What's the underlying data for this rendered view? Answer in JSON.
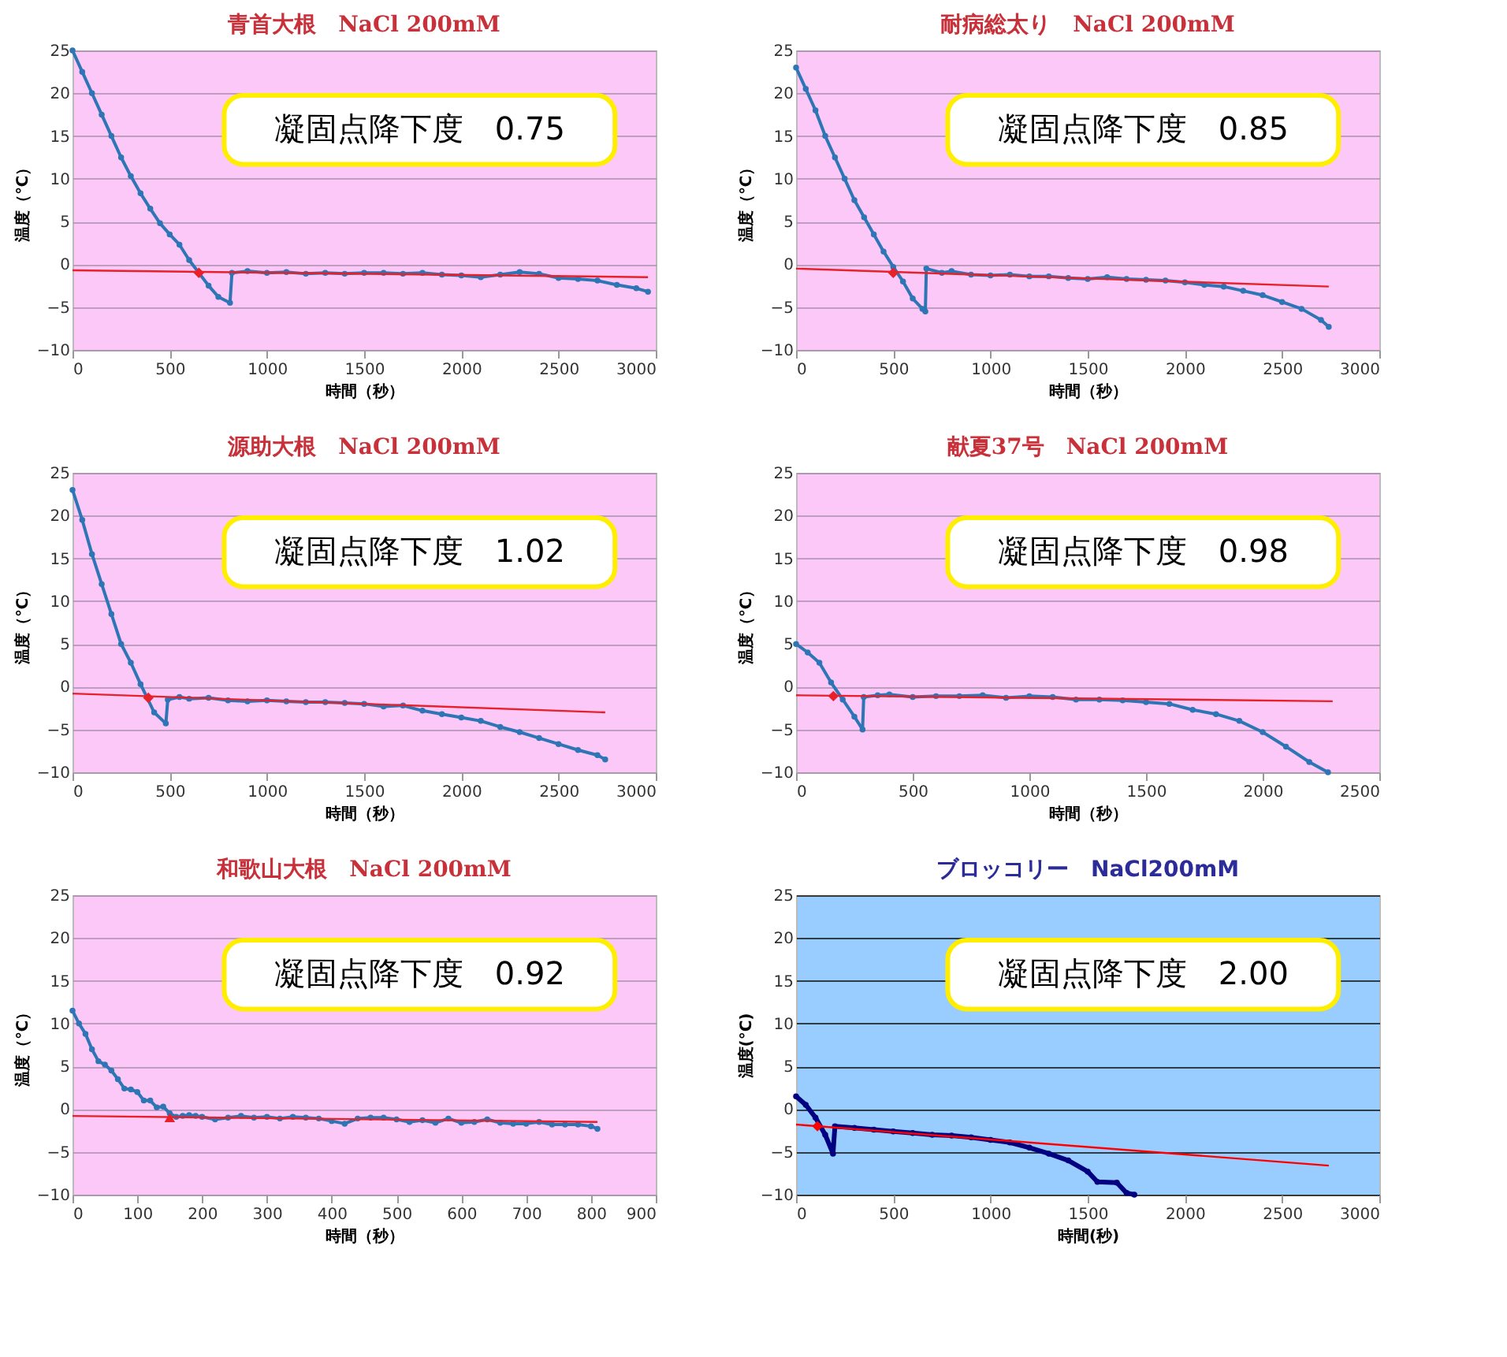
{
  "chart_data": [
    {
      "type": "line",
      "title": "青首大根　NaCl 200mM",
      "xlabel": "時間（秒）",
      "ylabel": "温度（℃）",
      "xlim": [
        0,
        3000
      ],
      "ylim": [
        -10,
        25
      ],
      "xticks": [
        0,
        500,
        1000,
        1500,
        2000,
        2500,
        3000
      ],
      "yticks": [
        -10,
        -5,
        0,
        5,
        10,
        15,
        20,
        25
      ],
      "grid": "y",
      "annotations": [
        "凝固点降下度　0.75"
      ],
      "series": [
        {
          "type": "line",
          "color": "#2e75b6",
          "marker": "circle",
          "x": [
            0,
            50,
            100,
            150,
            200,
            250,
            300,
            350,
            400,
            450,
            500,
            550,
            600,
            650,
            700,
            750,
            810,
            820,
            900,
            1000,
            1100,
            1200,
            1300,
            1400,
            1500,
            1600,
            1700,
            1800,
            1900,
            2000,
            2100,
            2200,
            2300,
            2400,
            2500,
            2600,
            2700,
            2800,
            2900,
            2960
          ],
          "values": [
            25,
            22.5,
            20,
            17.5,
            15,
            12.5,
            10.3,
            8.3,
            6.5,
            4.8,
            3.5,
            2.3,
            0.5,
            -1,
            -2.5,
            -3.8,
            -4.5,
            -1,
            -0.8,
            -1,
            -0.9,
            -1.1,
            -1,
            -1.1,
            -1,
            -1,
            -1.1,
            -1,
            -1.2,
            -1.3,
            -1.5,
            -1.2,
            -0.9,
            -1.1,
            -1.6,
            -1.7,
            -1.9,
            -2.4,
            -2.8,
            -3.2
          ]
        },
        {
          "type": "line",
          "color": "#e8202a",
          "marker": "none",
          "x": [
            0,
            2960
          ],
          "values": [
            -0.7,
            -1.5
          ]
        },
        {
          "type": "scatter",
          "color": "#e8202a",
          "marker": "diamond",
          "x": [
            650
          ],
          "values": [
            -1
          ]
        }
      ]
    },
    {
      "type": "line",
      "title": "耐病総太り　NaCl 200mM",
      "xlabel": "時間（秒）",
      "ylabel": "温度（℃）",
      "xlim": [
        0,
        3000
      ],
      "ylim": [
        -10,
        25
      ],
      "xticks": [
        0,
        500,
        1000,
        1500,
        2000,
        2500,
        3000
      ],
      "yticks": [
        -10,
        -5,
        0,
        5,
        10,
        15,
        20,
        25
      ],
      "grid": "y",
      "annotations": [
        "凝固点降下度　0.85"
      ],
      "series": [
        {
          "type": "line",
          "color": "#2e75b6",
          "marker": "circle",
          "x": [
            0,
            50,
            100,
            150,
            200,
            250,
            300,
            350,
            400,
            450,
            500,
            550,
            600,
            650,
            665,
            670,
            750,
            800,
            900,
            1000,
            1100,
            1200,
            1300,
            1400,
            1500,
            1600,
            1700,
            1800,
            1900,
            2000,
            2100,
            2200,
            2300,
            2400,
            2500,
            2600,
            2700,
            2740
          ],
          "values": [
            23,
            20.5,
            18,
            15,
            12.5,
            10,
            7.5,
            5.5,
            3.5,
            1.5,
            -0.3,
            -2,
            -4,
            -5.2,
            -5.5,
            -0.5,
            -1,
            -0.8,
            -1.2,
            -1.3,
            -1.2,
            -1.4,
            -1.4,
            -1.6,
            -1.7,
            -1.5,
            -1.7,
            -1.8,
            -1.9,
            -2.1,
            -2.4,
            -2.6,
            -3.1,
            -3.6,
            -4.4,
            -5.2,
            -6.5,
            -7.3
          ]
        },
        {
          "type": "line",
          "color": "#e8202a",
          "marker": "none",
          "x": [
            0,
            2740
          ],
          "values": [
            -0.5,
            -2.6
          ]
        },
        {
          "type": "scatter",
          "color": "#e8202a",
          "marker": "diamond",
          "x": [
            500
          ],
          "values": [
            -1
          ]
        }
      ]
    },
    {
      "type": "line",
      "title": "源助大根　NaCl 200mM",
      "xlabel": "時間（秒）",
      "ylabel": "温度（℃）",
      "xlim": [
        0,
        3000
      ],
      "ylim": [
        -10,
        25
      ],
      "xticks": [
        0,
        500,
        1000,
        1500,
        2000,
        2500,
        3000
      ],
      "yticks": [
        -10,
        -5,
        0,
        5,
        10,
        15,
        20,
        25
      ],
      "grid": "y",
      "annotations": [
        "凝固点降下度　1.02"
      ],
      "series": [
        {
          "type": "line",
          "color": "#2e75b6",
          "marker": "circle",
          "x": [
            0,
            50,
            100,
            150,
            200,
            250,
            300,
            350,
            420,
            480,
            490,
            550,
            600,
            700,
            800,
            900,
            1000,
            1100,
            1200,
            1300,
            1400,
            1500,
            1600,
            1700,
            1800,
            1900,
            2000,
            2100,
            2200,
            2300,
            2400,
            2500,
            2600,
            2700,
            2740
          ],
          "values": [
            23,
            19.5,
            15.5,
            12,
            8.5,
            5,
            2.8,
            0.3,
            -3,
            -4.3,
            -1.5,
            -1.2,
            -1.4,
            -1.3,
            -1.6,
            -1.7,
            -1.6,
            -1.7,
            -1.8,
            -1.8,
            -1.9,
            -2,
            -2.3,
            -2.2,
            -2.8,
            -3.2,
            -3.6,
            -4,
            -4.7,
            -5.3,
            -6,
            -6.7,
            -7.4,
            -8,
            -8.5
          ]
        },
        {
          "type": "line",
          "color": "#e8202a",
          "marker": "none",
          "x": [
            0,
            2740
          ],
          "values": [
            -0.8,
            -3
          ]
        },
        {
          "type": "scatter",
          "color": "#e8202a",
          "marker": "diamond",
          "x": [
            390
          ],
          "values": [
            -1.3
          ]
        }
      ]
    },
    {
      "type": "line",
      "title": "献夏37号　NaCl 200mM",
      "xlabel": "時間（秒）",
      "ylabel": "温度（℃）",
      "xlim": [
        0,
        2500
      ],
      "ylim": [
        -10,
        25
      ],
      "xticks": [
        0,
        500,
        1000,
        1500,
        2000,
        2500
      ],
      "yticks": [
        -10,
        -5,
        0,
        5,
        10,
        15,
        20,
        25
      ],
      "grid": "y",
      "annotations": [
        "凝固点降下度　0.98"
      ],
      "series": [
        {
          "type": "line",
          "color": "#2e75b6",
          "marker": "circle",
          "x": [
            0,
            50,
            100,
            150,
            200,
            250,
            285,
            290,
            350,
            400,
            500,
            600,
            700,
            800,
            900,
            1000,
            1100,
            1200,
            1300,
            1400,
            1500,
            1600,
            1700,
            1800,
            1900,
            2000,
            2100,
            2200,
            2280
          ],
          "values": [
            5,
            4,
            2.8,
            0.5,
            -1.5,
            -3.5,
            -5,
            -1.2,
            -1,
            -0.9,
            -1.2,
            -1.1,
            -1.1,
            -1,
            -1.3,
            -1.1,
            -1.2,
            -1.5,
            -1.5,
            -1.6,
            -1.8,
            -2,
            -2.7,
            -3.2,
            -4,
            -5.3,
            -7,
            -8.8,
            -10
          ]
        },
        {
          "type": "line",
          "color": "#e8202a",
          "marker": "none",
          "x": [
            0,
            2300
          ],
          "values": [
            -1,
            -1.7
          ]
        },
        {
          "type": "scatter",
          "color": "#e8202a",
          "marker": "diamond",
          "x": [
            160
          ],
          "values": [
            -1.1
          ]
        }
      ]
    },
    {
      "type": "line",
      "title": "和歌山大根　NaCl 200mM",
      "xlabel": "時間（秒）",
      "ylabel": "温度（℃）",
      "xlim": [
        0,
        900
      ],
      "ylim": [
        -10,
        25
      ],
      "xticks": [
        0,
        100,
        200,
        300,
        400,
        500,
        600,
        700,
        800,
        900
      ],
      "yticks": [
        -10,
        -5,
        0,
        5,
        10,
        15,
        20,
        25
      ],
      "grid": "y",
      "annotations": [
        "凝固点降下度　0.92"
      ],
      "series": [
        {
          "type": "line",
          "color": "#2e75b6",
          "marker": "circle",
          "x": [
            0,
            10,
            20,
            30,
            40,
            50,
            60,
            70,
            80,
            90,
            100,
            110,
            120,
            130,
            140,
            150,
            160,
            170,
            180,
            190,
            200,
            220,
            240,
            260,
            280,
            300,
            320,
            340,
            360,
            380,
            400,
            420,
            440,
            460,
            480,
            500,
            520,
            540,
            560,
            580,
            600,
            620,
            640,
            660,
            680,
            700,
            720,
            740,
            760,
            780,
            800,
            810
          ],
          "values": [
            11.5,
            10,
            8.8,
            7,
            5.6,
            5.2,
            4.5,
            3.5,
            2.4,
            2.3,
            2,
            1,
            1,
            0.2,
            0.3,
            -0.5,
            -0.9,
            -0.8,
            -0.7,
            -0.8,
            -0.9,
            -1.2,
            -1,
            -0.8,
            -1,
            -0.9,
            -1.1,
            -0.9,
            -1,
            -1.1,
            -1.4,
            -1.7,
            -1.1,
            -1,
            -1,
            -1.2,
            -1.5,
            -1.3,
            -1.6,
            -1.1,
            -1.6,
            -1.5,
            -1.2,
            -1.6,
            -1.7,
            -1.7,
            -1.5,
            -1.8,
            -1.8,
            -1.8,
            -2,
            -2.3
          ]
        },
        {
          "type": "line",
          "color": "#e8202a",
          "marker": "none",
          "x": [
            0,
            810
          ],
          "values": [
            -0.8,
            -1.5
          ]
        },
        {
          "type": "scatter",
          "color": "#e8202a",
          "marker": "triangle",
          "x": [
            150
          ],
          "values": [
            -1
          ]
        }
      ]
    },
    {
      "type": "line",
      "title": "ブロッコリー　NaCl200mM",
      "xlabel": "時間(秒)",
      "ylabel": "温度(°C)",
      "xlim": [
        0,
        3000
      ],
      "ylim": [
        -10,
        25
      ],
      "xticks": [
        0,
        500,
        1000,
        1500,
        2000,
        2500,
        3000
      ],
      "yticks": [
        -10,
        -5,
        0,
        5,
        10,
        15,
        20,
        25
      ],
      "grid": "y",
      "annotations": [
        "凝固点降下度　2.00"
      ],
      "series": [
        {
          "type": "line",
          "color": "#000080",
          "marker": "circle",
          "x": [
            0,
            50,
            100,
            150,
            190,
            200,
            300,
            400,
            500,
            600,
            700,
            800,
            900,
            1000,
            1100,
            1200,
            1300,
            1400,
            1500,
            1550,
            1650,
            1700,
            1740
          ],
          "values": [
            1.5,
            0.5,
            -1,
            -3,
            -5.2,
            -2,
            -2.2,
            -2.4,
            -2.6,
            -2.8,
            -3,
            -3.1,
            -3.3,
            -3.6,
            -3.9,
            -4.5,
            -5.2,
            -6,
            -7.3,
            -8.5,
            -8.6,
            -9.8,
            -10
          ]
        },
        {
          "type": "line",
          "color": "#ff0000",
          "marker": "none",
          "x": [
            0,
            2740
          ],
          "values": [
            -1.8,
            -6.6
          ]
        },
        {
          "type": "scatter",
          "color": "#ff0000",
          "marker": "diamond",
          "x": [
            110
          ],
          "values": [
            -2
          ]
        }
      ]
    }
  ]
}
